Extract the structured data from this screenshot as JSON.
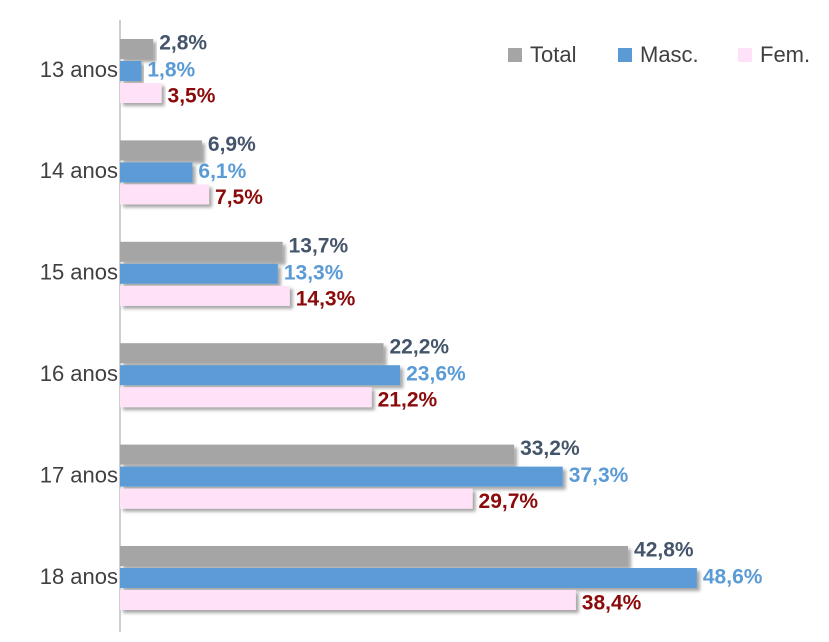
{
  "chart_data": {
    "type": "bar",
    "orientation": "horizontal",
    "categories": [
      "13 anos",
      "14 anos",
      "15 anos",
      "16 anos",
      "17 anos",
      "18 anos"
    ],
    "series": [
      {
        "name": "Total",
        "color": "#a5a5a5",
        "label_color": "#44546a",
        "values": [
          2.8,
          6.9,
          13.7,
          22.2,
          33.2,
          42.8
        ],
        "value_labels": [
          "2,8%",
          "6,9%",
          "13,7%",
          "22,2%",
          "33,2%",
          "42,8%"
        ]
      },
      {
        "name": "Masc.",
        "color": "#5b9bd5",
        "label_color": "#5b9bd5",
        "values": [
          1.8,
          6.1,
          13.3,
          23.6,
          37.3,
          48.6
        ],
        "value_labels": [
          "1,8%",
          "6,1%",
          "13,3%",
          "23,6%",
          "37,3%",
          "48,6%"
        ]
      },
      {
        "name": "Fem.",
        "color": "#ffe1f8",
        "label_color": "#8b0a0a",
        "values": [
          3.5,
          7.5,
          14.3,
          21.2,
          29.7,
          38.4
        ],
        "value_labels": [
          "3,5%",
          "7,5%",
          "14,3%",
          "21,2%",
          "29,7%",
          "38,4%"
        ]
      }
    ],
    "legend": "top-right"
  }
}
